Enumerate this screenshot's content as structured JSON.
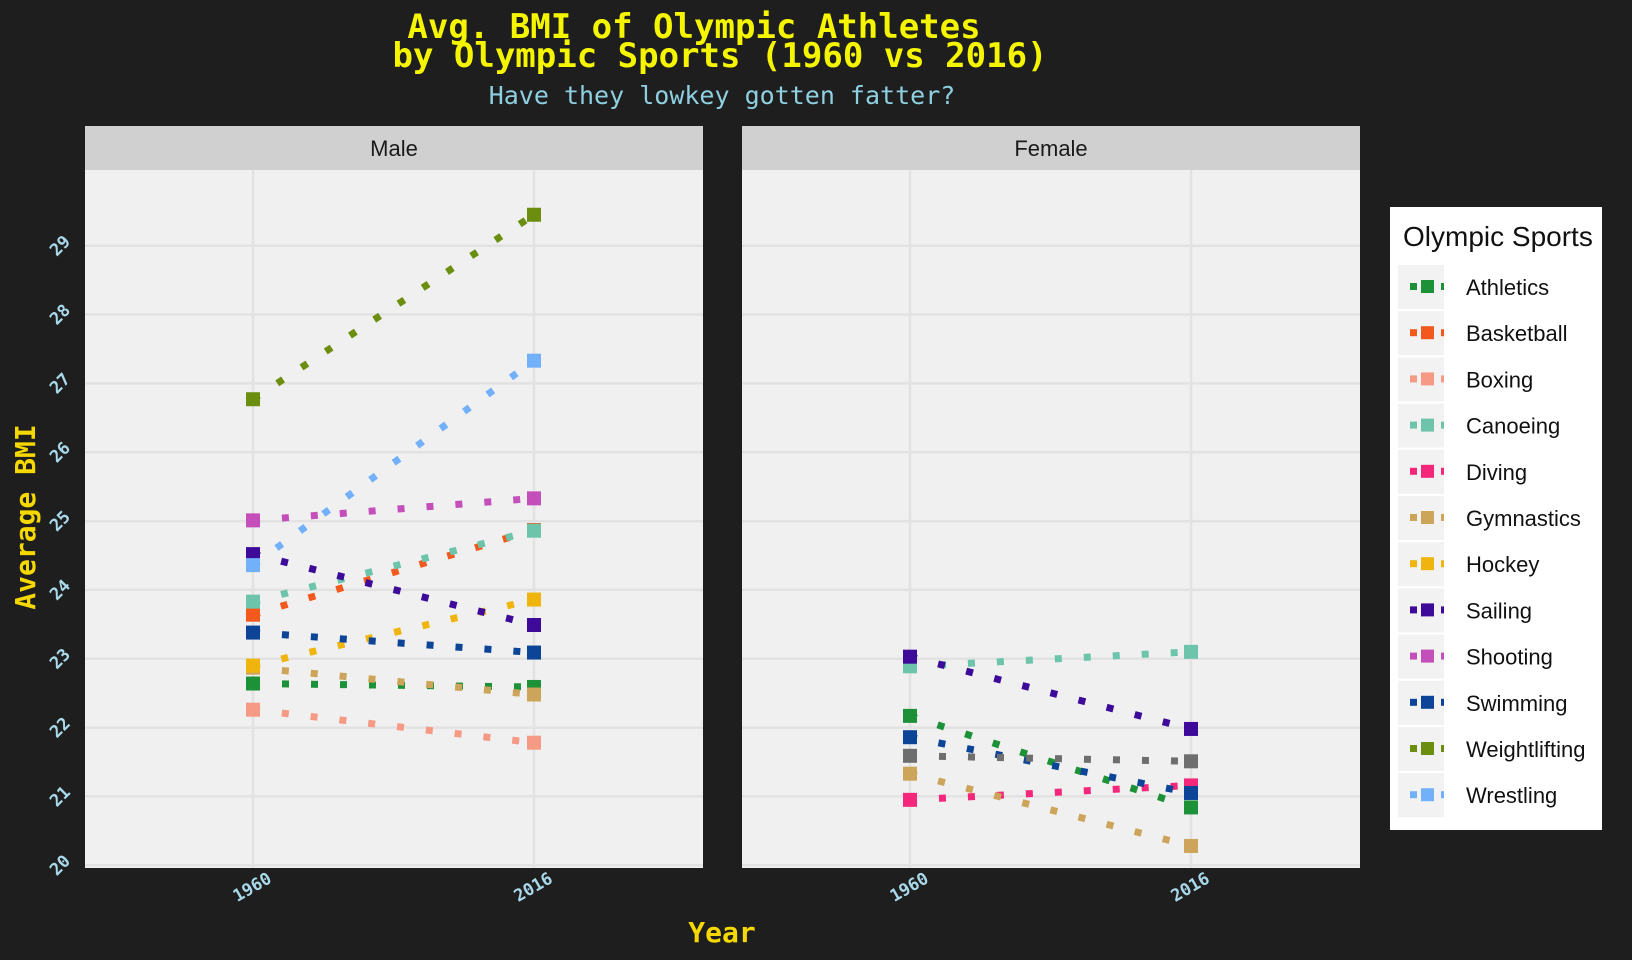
{
  "chart_data": {
    "type": "line",
    "title_line1": "Avg. BMI of Olympic Athletes",
    "title_line2": "by Olympic Sports (1960 vs 2016)",
    "subtitle": "Have they lowkey gotten fatter?",
    "xlabel": "Year",
    "ylabel": "Average BMI",
    "x_ticks": [
      "1960",
      "2016"
    ],
    "y_ticks": [
      20,
      21,
      22,
      23,
      24,
      25,
      26,
      27,
      28,
      29
    ],
    "ylim": [
      19.96,
      30.1
    ],
    "grid": true,
    "legend_title": "Olympic Sports",
    "legend_position": "right",
    "panels": [
      {
        "name": "Male",
        "series": [
          {
            "sport": "Athletics",
            "values": [
              22.64,
              22.59
            ]
          },
          {
            "sport": "Basketball",
            "values": [
              23.64,
              24.87
            ]
          },
          {
            "sport": "Boxing",
            "values": [
              22.26,
              21.78
            ]
          },
          {
            "sport": "Canoeing",
            "values": [
              23.83,
              24.86
            ]
          },
          {
            "sport": "Gymnastics",
            "values": [
              22.87,
              22.48
            ]
          },
          {
            "sport": "Hockey",
            "values": [
              22.9,
              23.86
            ]
          },
          {
            "sport": "Sailing",
            "values": [
              24.52,
              23.49
            ]
          },
          {
            "sport": "Shooting",
            "values": [
              25.01,
              25.33
            ]
          },
          {
            "sport": "Swimming",
            "values": [
              23.38,
              23.09
            ]
          },
          {
            "sport": "Weightlifting",
            "values": [
              26.77,
              29.45
            ]
          },
          {
            "sport": "Wrestling",
            "values": [
              24.36,
              27.33
            ]
          }
        ]
      },
      {
        "name": "Female",
        "series": [
          {
            "sport": "Athletics",
            "values": [
              22.17,
              20.84
            ]
          },
          {
            "sport": "Canoeing",
            "values": [
              22.89,
              23.1
            ]
          },
          {
            "sport": "Diving",
            "values": [
              20.95,
              21.16
            ]
          },
          {
            "sport": "Gymnastics",
            "values": [
              21.33,
              20.28
            ]
          },
          {
            "sport": "Sailing",
            "values": [
              23.03,
              21.98
            ]
          },
          {
            "sport": "Swimming",
            "values": [
              21.86,
              21.05
            ]
          },
          {
            "sport": null,
            "color": "#6e6e6e",
            "values": [
              21.59,
              21.51
            ]
          }
        ]
      }
    ]
  },
  "legend": [
    {
      "sport": "Athletics",
      "color": "#1c9138"
    },
    {
      "sport": "Basketball",
      "color": "#f3591d"
    },
    {
      "sport": "Boxing",
      "color": "#f69a86"
    },
    {
      "sport": "Canoeing",
      "color": "#6cc4ab"
    },
    {
      "sport": "Diving",
      "color": "#f5277b"
    },
    {
      "sport": "Gymnastics",
      "color": "#cda55a"
    },
    {
      "sport": "Hockey",
      "color": "#efb50e"
    },
    {
      "sport": "Sailing",
      "color": "#3d0a99"
    },
    {
      "sport": "Shooting",
      "color": "#c54fba"
    },
    {
      "sport": "Swimming",
      "color": "#0c4597"
    },
    {
      "sport": "Weightlifting",
      "color": "#6b8e0f"
    },
    {
      "sport": "Wrestling",
      "color": "#72b1fa"
    }
  ],
  "colors": {
    "background": "#1e1e1e",
    "panel_background": "#f0f0f0",
    "strip_background": "#d0d0d0",
    "gridline": "#e2e2e2"
  }
}
